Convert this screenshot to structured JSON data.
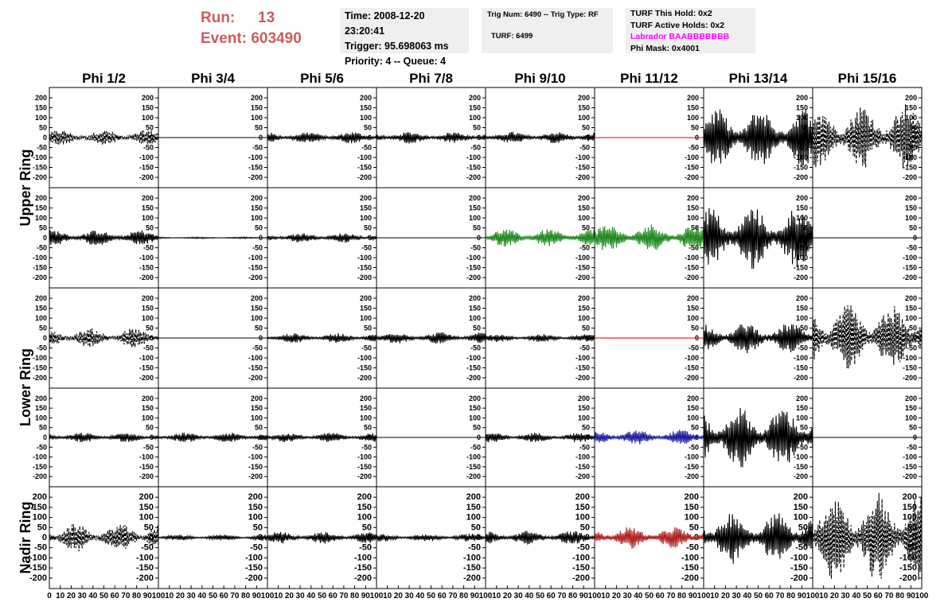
{
  "header": {
    "run_label": "Run:",
    "run_value": "13",
    "event_label": "Event:",
    "event_value": "603490",
    "time": "Time: 2008-12-20 23:20:41",
    "trigger": "Trigger: 95.698063 ms",
    "priority": "Priority: 4 -- Queue: 4",
    "trig_num": "Trig Num: 6490 -- Trig Type: RF",
    "turf": "TURF: 6499",
    "turf_hold": "TURF This Hold: 0x2",
    "turf_active": "TURF Active Holds: 0x2",
    "labrador": "Labrador BAABBBBBBB",
    "phi_mask": "Phi Mask: 0x4001"
  },
  "chart_data": {
    "type": "line",
    "columns": [
      "Phi 1/2",
      "Phi 3/4",
      "Phi 5/6",
      "Phi 7/8",
      "Phi 9/10",
      "Phi 11/12",
      "Phi 13/14",
      "Phi 15/16"
    ],
    "row_labels": [
      {
        "text": "Upper Ring",
        "rows": [
          0,
          1
        ]
      },
      {
        "text": "Lower Ring",
        "rows": [
          2,
          3
        ]
      },
      {
        "text": "Nadir Ring",
        "rows": [
          4,
          4
        ]
      }
    ],
    "xlim": [
      0,
      100
    ],
    "ylim": [
      -240,
      240
    ],
    "y_ticks": [
      -200,
      -150,
      -100,
      -50,
      0,
      50,
      100,
      150,
      200
    ],
    "x_ticks": [
      0,
      10,
      20,
      30,
      40,
      50,
      60,
      70,
      80,
      90,
      100
    ],
    "nadir_y_ticks": [
      -200,
      -150,
      -100,
      -50,
      0,
      50,
      100,
      150,
      200
    ],
    "colors": {
      "default": "#000000",
      "red": "#b22222",
      "green": "#228b22",
      "blue": "#1f1f9f",
      "flat_red": "#cc0000"
    },
    "traces": [
      [
        {
          "amp": 40,
          "style": "dashed",
          "color": "default"
        },
        {
          "amp": 0,
          "style": "solid",
          "color": "default"
        },
        {
          "amp": 30,
          "style": "solid",
          "color": "default"
        },
        {
          "amp": 30,
          "style": "solid",
          "color": "default"
        },
        {
          "amp": 30,
          "style": "solid",
          "color": "default"
        },
        {
          "amp": 0,
          "style": "solid",
          "color": "flat_red"
        },
        {
          "amp": 150,
          "style": "solid",
          "color": "default"
        },
        {
          "amp": 170,
          "style": "dashed",
          "color": "default"
        }
      ],
      [
        {
          "amp": 40,
          "style": "solid",
          "color": "default"
        },
        {
          "amp": 4,
          "style": "solid",
          "color": "default"
        },
        {
          "amp": 25,
          "style": "solid",
          "color": "default"
        },
        {
          "amp": 0,
          "style": "solid",
          "color": "default"
        },
        {
          "amp": 45,
          "style": "solid",
          "color": "green"
        },
        {
          "amp": 70,
          "style": "solid",
          "color": "green"
        },
        {
          "amp": 160,
          "style": "solid",
          "color": "default"
        },
        {
          "amp": 0,
          "style": "solid",
          "color": "default"
        }
      ],
      [
        {
          "amp": 50,
          "style": "dashed",
          "color": "default"
        },
        {
          "amp": 0,
          "style": "solid",
          "color": "default"
        },
        {
          "amp": 25,
          "style": "solid",
          "color": "default"
        },
        {
          "amp": 30,
          "style": "solid",
          "color": "default"
        },
        {
          "amp": 20,
          "style": "solid",
          "color": "default"
        },
        {
          "amp": 0,
          "style": "solid",
          "color": "flat_red"
        },
        {
          "amp": 80,
          "style": "solid",
          "color": "default"
        },
        {
          "amp": 170,
          "style": "dashed",
          "color": "default"
        }
      ],
      [
        {
          "amp": 25,
          "style": "solid",
          "color": "default"
        },
        {
          "amp": 25,
          "style": "solid",
          "color": "default"
        },
        {
          "amp": 25,
          "style": "solid",
          "color": "default"
        },
        {
          "amp": 0,
          "style": "solid",
          "color": "default"
        },
        {
          "amp": 25,
          "style": "solid",
          "color": "default"
        },
        {
          "amp": 40,
          "style": "solid",
          "color": "blue"
        },
        {
          "amp": 160,
          "style": "solid",
          "color": "default"
        },
        {
          "amp": 0,
          "style": "solid",
          "color": "default"
        }
      ],
      [
        {
          "amp": 70,
          "style": "dashed",
          "color": "default"
        },
        {
          "amp": 15,
          "style": "solid",
          "color": "default"
        },
        {
          "amp": 30,
          "style": "solid",
          "color": "default"
        },
        {
          "amp": 20,
          "style": "solid",
          "color": "default"
        },
        {
          "amp": 35,
          "style": "solid",
          "color": "default"
        },
        {
          "amp": 55,
          "style": "solid",
          "color": "red"
        },
        {
          "amp": 130,
          "style": "solid",
          "color": "default"
        },
        {
          "amp": 230,
          "style": "dashed",
          "color": "default"
        }
      ]
    ]
  }
}
